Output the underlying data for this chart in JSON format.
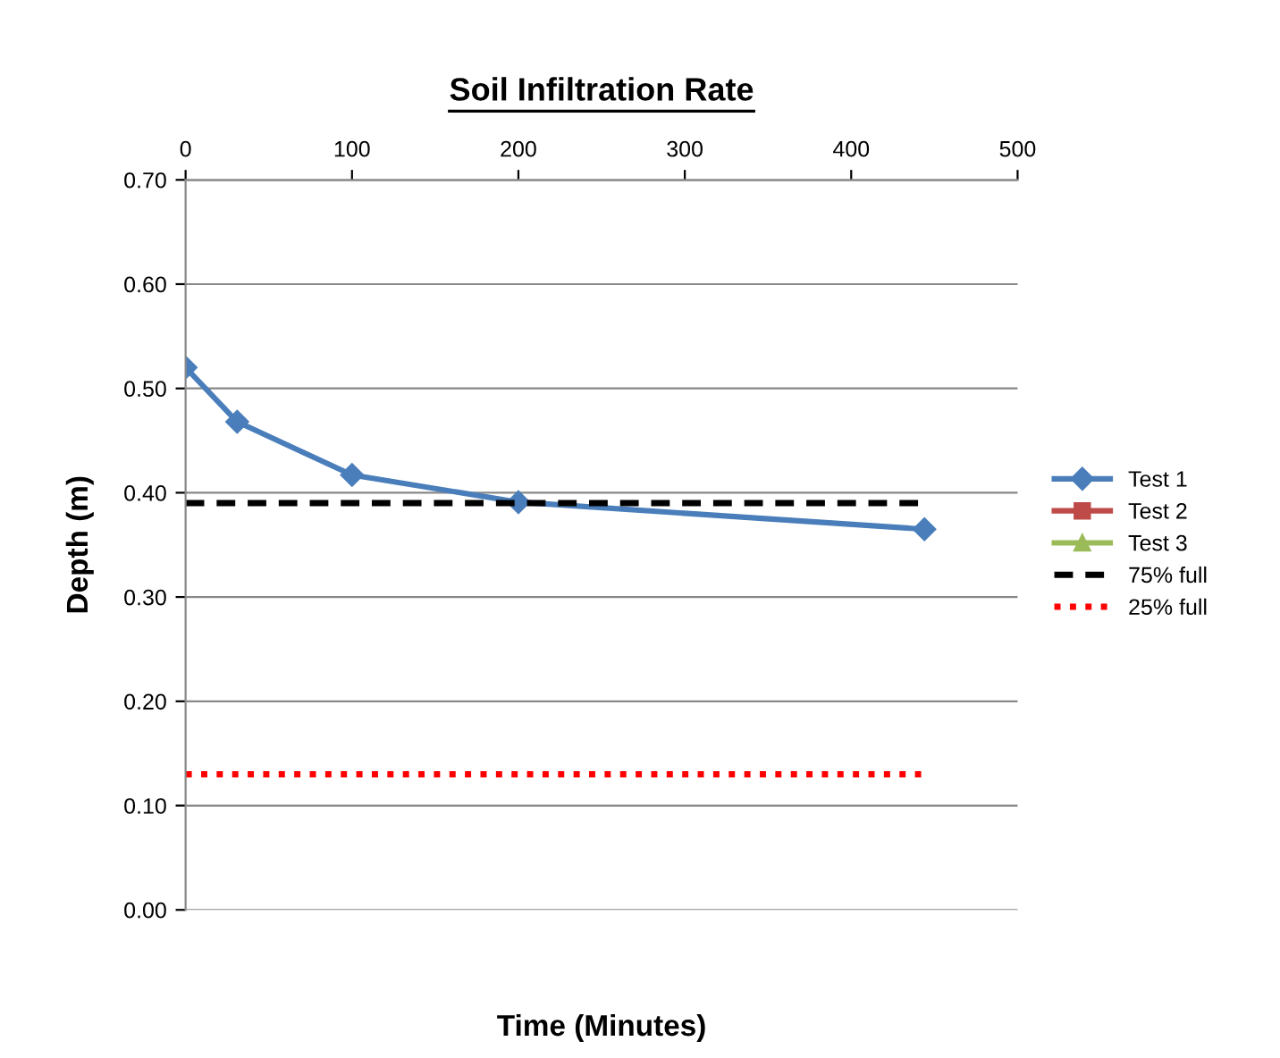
{
  "chart_data": {
    "type": "line",
    "title": "Soil Infiltration Rate",
    "xlabel": "Time (Minutes)",
    "ylabel": "Depth (m)",
    "xlim": [
      0,
      500
    ],
    "xticks": [
      0,
      100,
      200,
      300,
      400,
      500
    ],
    "ylim": [
      0,
      0.7
    ],
    "yticks": [
      {
        "value": 0,
        "label": "0.00"
      },
      {
        "value": 0.1,
        "label": "0.10"
      },
      {
        "value": 0.2,
        "label": "0.20"
      },
      {
        "value": 0.3,
        "label": "0.30"
      },
      {
        "value": 0.4,
        "label": "0.40"
      },
      {
        "value": 0.5,
        "label": "0.50"
      },
      {
        "value": 0.6,
        "label": "0.60"
      },
      {
        "value": 0.7,
        "label": "0.70"
      }
    ],
    "grid": "y",
    "legend": "right",
    "series": [
      {
        "name": "Test 1",
        "color": "#4a7ebb",
        "marker": "diamond",
        "line_style": "solid",
        "x": [
          0,
          31,
          100,
          200,
          444
        ],
        "values": [
          0.52,
          0.468,
          0.417,
          0.391,
          0.365
        ]
      },
      {
        "name": "Test 2",
        "color": "#be4b48",
        "marker": "square",
        "line_style": "solid"
      },
      {
        "name": "Test 3",
        "color": "#9bbb59",
        "marker": "triangle",
        "line_style": "solid"
      },
      {
        "name": "75% full",
        "color": "#000000",
        "marker": "none",
        "line_style": "dashed",
        "x": [
          0,
          444
        ],
        "values": [
          0.39,
          0.39
        ]
      },
      {
        "name": "25% full",
        "color": "#ff0000",
        "marker": "none",
        "line_style": "dotted",
        "x": [
          0,
          444
        ],
        "values": [
          0.13,
          0.13
        ]
      }
    ]
  }
}
